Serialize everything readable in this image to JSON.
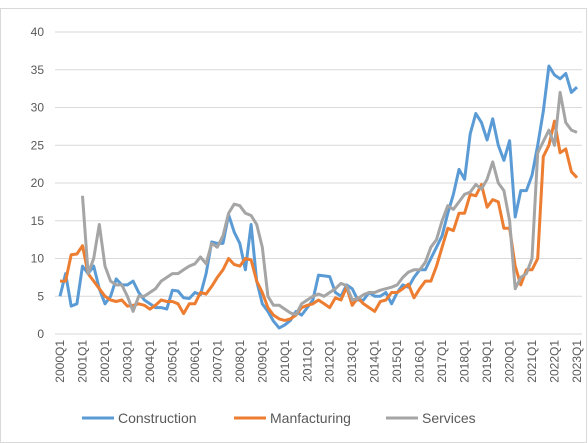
{
  "chart_data": {
    "type": "line",
    "categories": [
      "2000Q1",
      null,
      null,
      null,
      "2001Q1",
      null,
      null,
      null,
      "2002Q1",
      null,
      null,
      null,
      "2003Q1",
      null,
      null,
      null,
      "2004Q1",
      null,
      null,
      null,
      "2005Q1",
      null,
      null,
      null,
      "2006Q1",
      null,
      null,
      null,
      "2007Q1",
      null,
      null,
      null,
      "2008Q1",
      null,
      null,
      null,
      "2009Q1",
      null,
      null,
      null,
      "2010Q1",
      null,
      null,
      null,
      "2011Q1",
      null,
      null,
      null,
      "2012Q1",
      null,
      null,
      null,
      "2013Q1",
      null,
      null,
      null,
      "2014Q1",
      null,
      null,
      null,
      "2015Q1",
      null,
      null,
      null,
      "2016Q1",
      null,
      null,
      null,
      "2017Q1",
      null,
      null,
      null,
      "2018Q1",
      null,
      null,
      null,
      "2019Q1",
      null,
      null,
      null,
      "2020Q1",
      null,
      null,
      null,
      "2021Q1",
      null,
      null,
      null,
      "2022Q1",
      null,
      null,
      null,
      "2023Q1"
    ],
    "series": [
      {
        "name": "Construction",
        "color": "#5b9bd5",
        "values": [
          5,
          8,
          3.7,
          4,
          9,
          8,
          9,
          6,
          4,
          5,
          7.3,
          6.5,
          6.5,
          7,
          5.5,
          4.5,
          4,
          3.5,
          3.5,
          3.3,
          5.8,
          5.7,
          4.8,
          4.7,
          5.5,
          5.2,
          8,
          12.2,
          12,
          12,
          15.8,
          13.5,
          12,
          8.5,
          14.5,
          7,
          4,
          3,
          1.7,
          0.8,
          1.2,
          1.8,
          3,
          2.5,
          3.5,
          4.5,
          7.8,
          7.7,
          7.6,
          5.5,
          5,
          6.5,
          6,
          4.5,
          4.5,
          5.5,
          5,
          5,
          5.5,
          4,
          5.5,
          6.5,
          6.2,
          7.5,
          8.5,
          8.5,
          10,
          11.5,
          13,
          16,
          18.5,
          21.8,
          20.5,
          26.5,
          29.2,
          28,
          25.7,
          28.5,
          25,
          23,
          25.6,
          15.5,
          19,
          19,
          21,
          25,
          29.5,
          35.5,
          34.3,
          33.8,
          34.5,
          32,
          32.7
        ]
      },
      {
        "name": "Manfacturing",
        "color": "#ed7d31",
        "values": [
          7,
          7,
          10.5,
          10.6,
          11.7,
          8,
          7,
          6,
          5,
          4.5,
          4.3,
          4.5,
          3.7,
          3.8,
          4,
          3.8,
          3.3,
          3.8,
          4.5,
          4.3,
          4.3,
          4,
          2.7,
          4,
          4,
          5.5,
          5.3,
          6.3,
          7.5,
          8.5,
          10,
          9.2,
          9,
          10,
          9.8,
          7,
          5.5,
          3.5,
          2.5,
          2,
          1.8,
          2,
          2.5,
          3.5,
          3.8,
          4,
          4.5,
          4,
          3.5,
          4.8,
          4.5,
          6.2,
          3.8,
          4.8,
          4,
          3.5,
          3,
          4.3,
          4.5,
          5.5,
          5.5,
          6,
          6.6,
          4.8,
          6,
          7,
          7,
          9,
          11.5,
          14,
          13.7,
          16,
          16,
          18.5,
          18.3,
          19.8,
          16.8,
          17.8,
          17.5,
          14,
          14,
          9,
          6.5,
          8.5,
          8.5,
          10,
          23.5,
          25,
          28.2,
          24,
          24.5,
          21.5,
          20.7
        ]
      },
      {
        "name": "Services",
        "color": "#a5a5a5",
        "values": [
          null,
          null,
          null,
          null,
          18.3,
          8,
          10,
          14.5,
          9,
          7,
          6.5,
          6.5,
          5,
          3,
          5,
          5,
          5.5,
          6,
          7,
          7.5,
          8,
          8,
          8.5,
          9,
          9.3,
          10.2,
          9.3,
          12,
          11.5,
          13,
          16,
          17.2,
          17,
          16,
          15.7,
          14.5,
          11.5,
          5,
          3.8,
          3.8,
          3.3,
          2.8,
          2.6,
          4,
          4.5,
          5,
          5.3,
          5,
          5.5,
          6,
          6.7,
          6.4,
          4.5,
          4.7,
          5.2,
          5.5,
          5.5,
          5.8,
          6,
          6.2,
          6.5,
          7.5,
          8.2,
          8.5,
          8.5,
          9.5,
          11.5,
          12.5,
          15,
          17,
          16.5,
          17.5,
          18.5,
          18.8,
          19.8,
          19.2,
          20.5,
          22.8,
          20,
          19,
          15,
          6,
          7.5,
          8,
          10,
          24,
          25.5,
          27,
          25,
          32,
          28,
          27,
          26.7
        ]
      }
    ],
    "ylim": [
      0,
      40
    ],
    "yticks": [
      0,
      5,
      10,
      15,
      20,
      25,
      30,
      35,
      40
    ],
    "grid": true,
    "legend": "bottom"
  }
}
